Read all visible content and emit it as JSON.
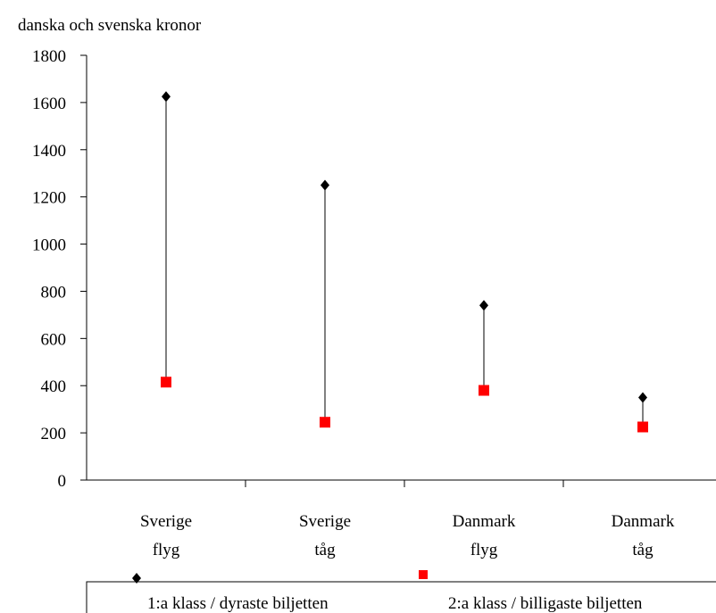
{
  "chart_data": {
    "type": "range",
    "title": "danska och svenska kronor",
    "categories": [
      [
        "Sverige",
        "flyg"
      ],
      [
        "Sverige",
        "tåg"
      ],
      [
        "Danmark",
        "flyg"
      ],
      [
        "Danmark",
        "tåg"
      ]
    ],
    "series": [
      {
        "name": "1:a klass / dyraste biljetten",
        "color": "#000000",
        "marker": "diamond",
        "values": [
          1625,
          1250,
          740,
          350
        ]
      },
      {
        "name": "2:a klass / billigaste biljetten",
        "color": "#ff0000",
        "marker": "square",
        "values": [
          415,
          245,
          380,
          225
        ]
      }
    ],
    "ylim": [
      0,
      1800
    ],
    "yticks": [
      0,
      200,
      400,
      600,
      800,
      1000,
      1200,
      1400,
      1600,
      1800
    ],
    "grid": false,
    "legend": "bottom"
  }
}
